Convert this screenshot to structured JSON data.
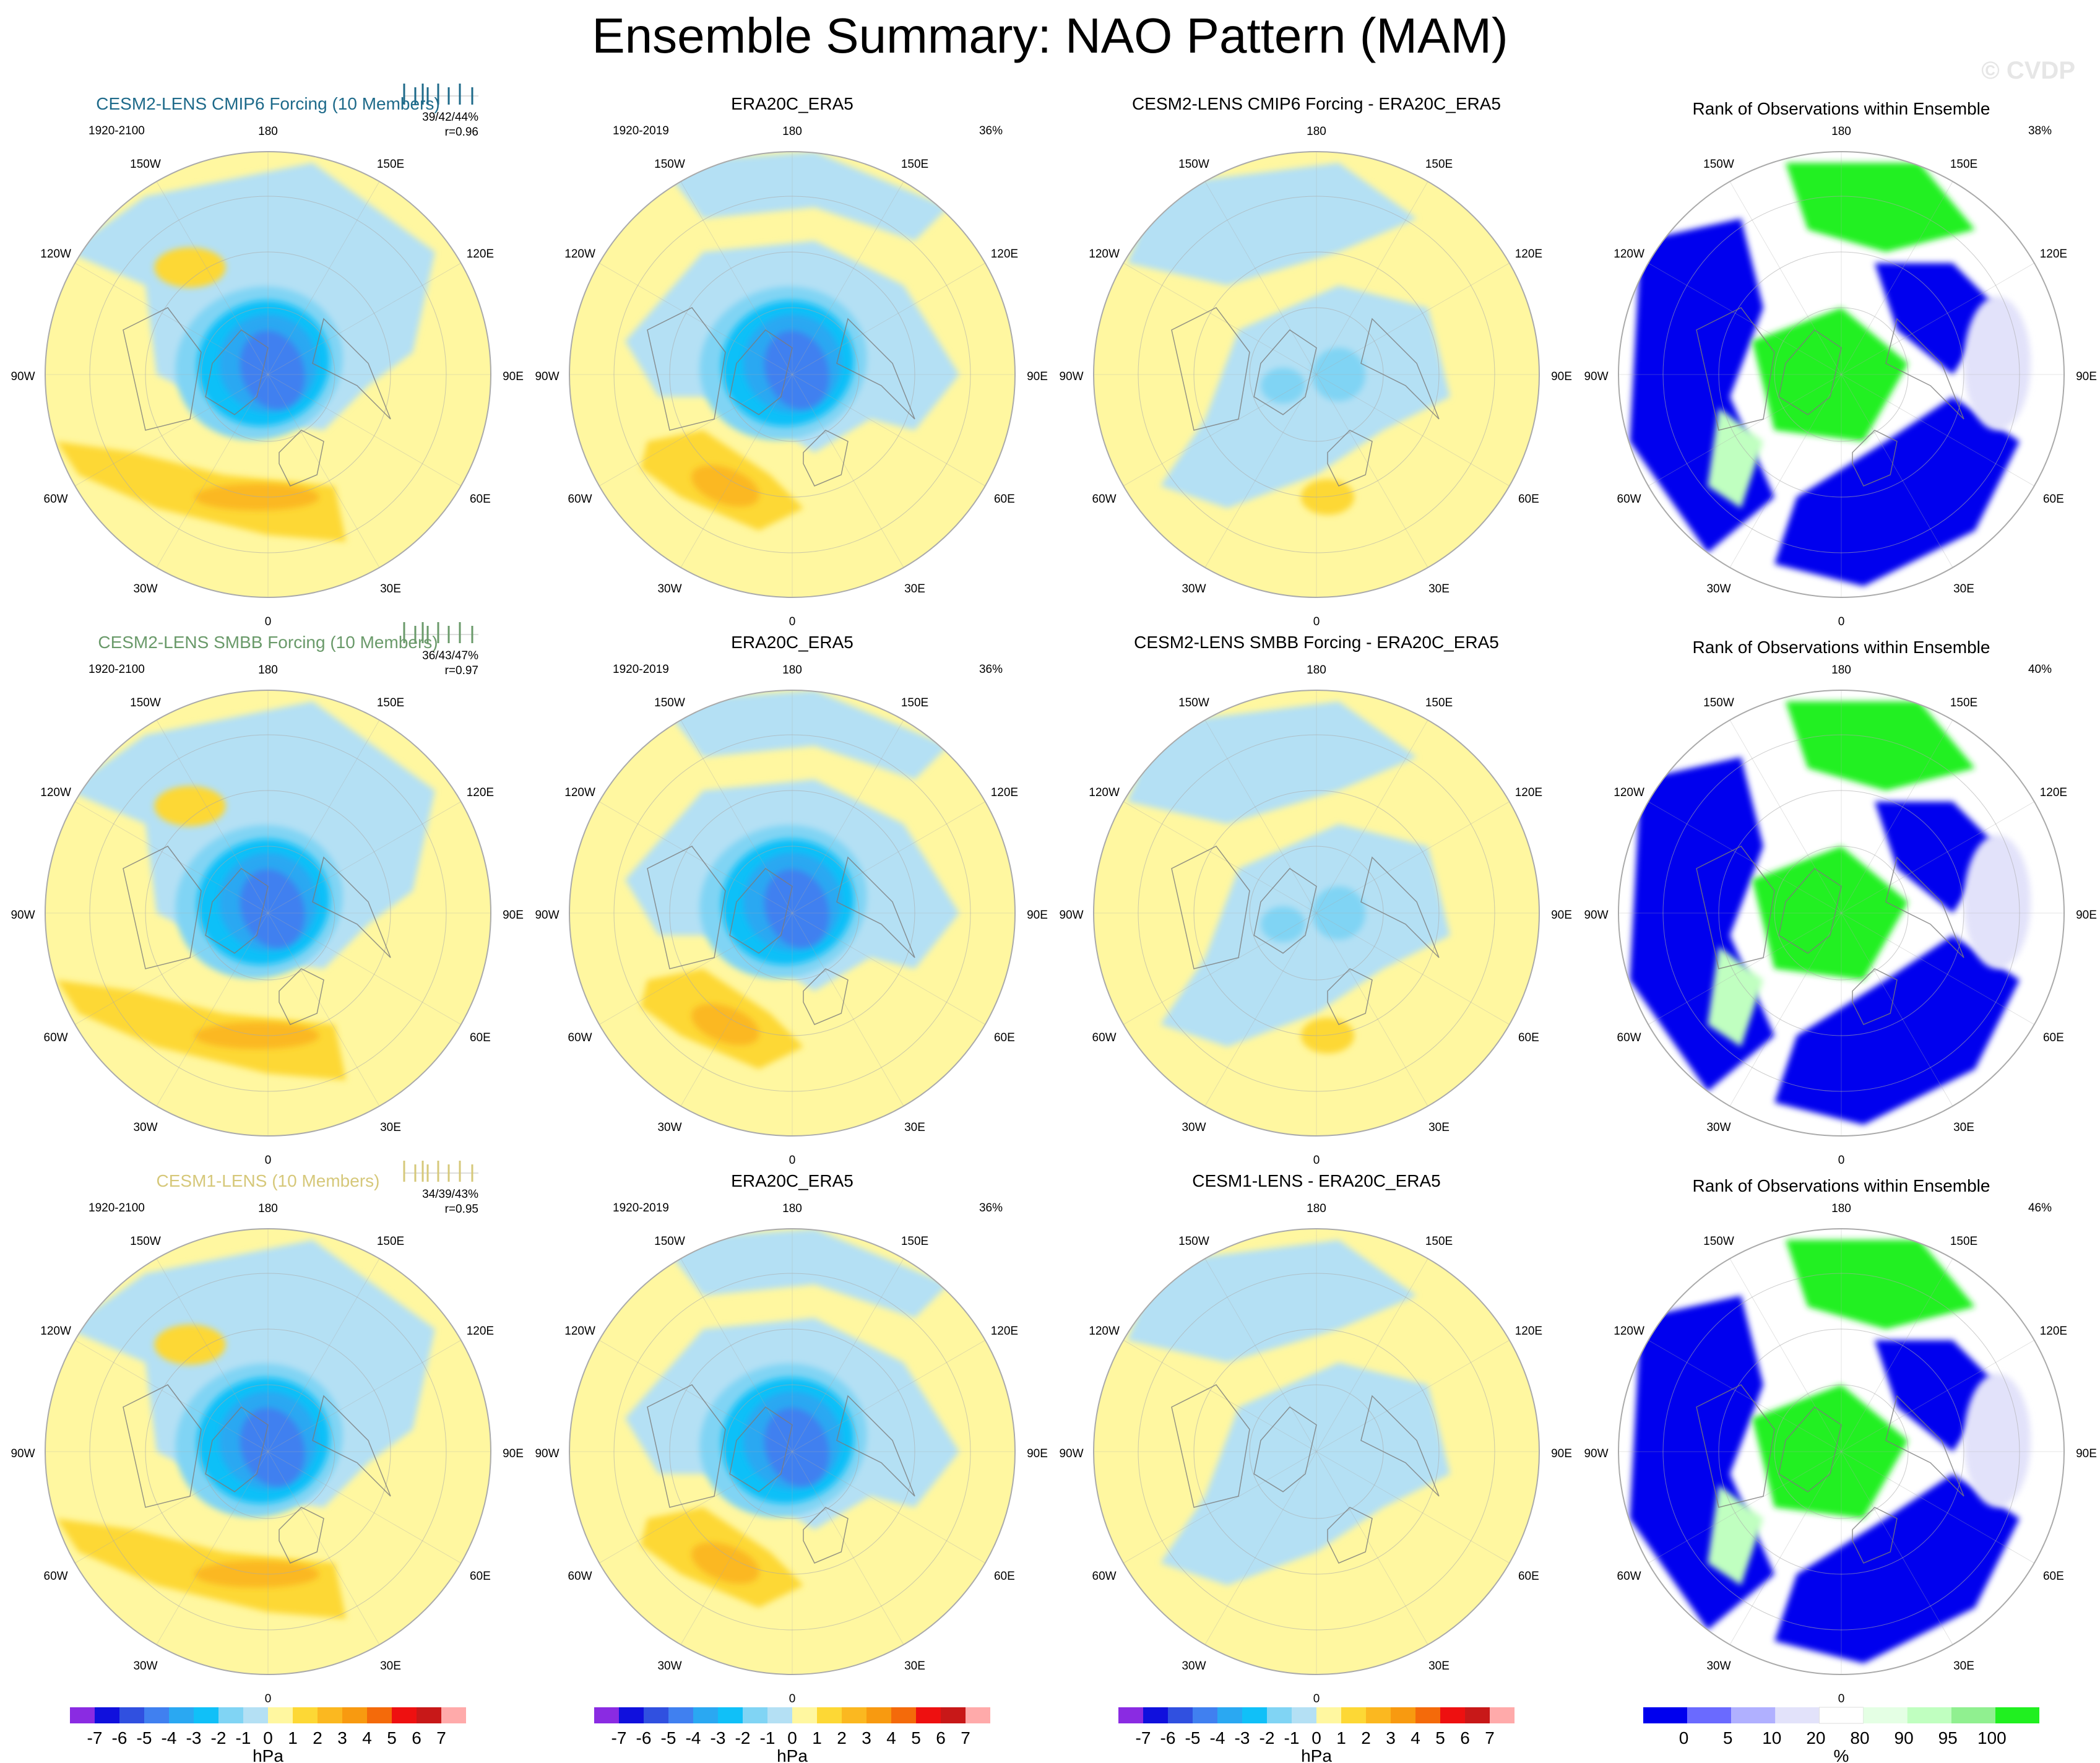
{
  "title": "Ensemble Summary: NAO Pattern (MAM)",
  "watermark": "© CVDP",
  "lon_labels": [
    "180",
    "150E",
    "120E",
    "90E",
    "60E",
    "30E",
    "0",
    "30W",
    "60W",
    "90W",
    "120W",
    "150W"
  ],
  "colors": {
    "pressure_scale": [
      "#8a2be2",
      "#1010dd",
      "#3050e0",
      "#4080f0",
      "#2aa8f2",
      "#10c0f8",
      "#80d4f4",
      "#b4e0f4",
      "#fff7a0",
      "#fdd835",
      "#fbb820",
      "#f89a10",
      "#f46a0a",
      "#ee1010",
      "#c81818",
      "#ffaaaa"
    ],
    "rank_scale": [
      "#0000ee",
      "#6a6aff",
      "#b0b0ff",
      "#e2e2fa",
      "#ffffff",
      "#e4ffe4",
      "#c0ffc0",
      "#90f090",
      "#20f020"
    ],
    "ocean_grey": "#aaaaaa"
  },
  "rows": [
    {
      "model_title": "CESM2-LENS CMIP6 Forcing (10 Members)",
      "title_color": "#1e6a8a",
      "model_years": "1920-2100",
      "pct_triplet": "39/42/44%",
      "corr": "r=0.96",
      "obs_title": "ERA20C_ERA5",
      "obs_years": "1920-2019",
      "obs_pct": "36%",
      "diff_title": "CESM2-LENS CMIP6 Forcing - ERA20C_ERA5",
      "rank_title": "Rank of Observations within Ensemble",
      "rank_pct": "38%"
    },
    {
      "model_title": "CESM2-LENS SMBB Forcing (10 Members)",
      "title_color": "#6a9a6a",
      "model_years": "1920-2100",
      "pct_triplet": "36/43/47%",
      "corr": "r=0.97",
      "obs_title": "ERA20C_ERA5",
      "obs_years": "1920-2019",
      "obs_pct": "36%",
      "diff_title": "CESM2-LENS SMBB Forcing - ERA20C_ERA5",
      "rank_title": "Rank of Observations within Ensemble",
      "rank_pct": "40%"
    },
    {
      "model_title": "CESM1-LENS (10 Members)",
      "title_color": "#d6c87a",
      "model_years": "1920-2100",
      "pct_triplet": "34/39/43%",
      "corr": "r=0.95",
      "obs_title": "ERA20C_ERA5",
      "obs_years": "1920-2019",
      "obs_pct": "36%",
      "diff_title": "CESM1-LENS - ERA20C_ERA5",
      "rank_title": "Rank of Observations within Ensemble",
      "rank_pct": "46%"
    }
  ],
  "colorbars": {
    "pressure_ticks": [
      "-7",
      "-6",
      "-5",
      "-4",
      "-3",
      "-2",
      "-1",
      "0",
      "1",
      "2",
      "3",
      "4",
      "5",
      "6",
      "7"
    ],
    "pressure_unit": "hPa",
    "rank_ticks": [
      "0",
      "5",
      "10",
      "20",
      "80",
      "90",
      "95",
      "100"
    ],
    "rank_unit": "%"
  },
  "chart_data": {
    "type": "heatmap",
    "title": "Ensemble Summary: NAO Pattern (MAM)",
    "projection": "north polar stereographic",
    "panels_per_row": [
      "ensemble mean pattern",
      "observed pattern",
      "model minus observations",
      "rank of observations within ensemble"
    ],
    "pressure_units": "hPa",
    "pressure_levels": [
      -7,
      -6,
      -5,
      -4,
      -3,
      -2,
      -1,
      0,
      1,
      2,
      3,
      4,
      5,
      6,
      7
    ],
    "rank_levels_percent": [
      0,
      5,
      10,
      20,
      80,
      90,
      95,
      100
    ],
    "rows": [
      {
        "model": "CESM2-LENS CMIP6 Forcing (10 Members)",
        "variance_explained_percent": [
          39,
          42,
          44
        ],
        "pattern_correlation": 0.96,
        "obs_variance_explained_percent": 36,
        "rank_percent": 38
      },
      {
        "model": "CESM2-LENS SMBB Forcing (10 Members)",
        "variance_explained_percent": [
          36,
          43,
          47
        ],
        "pattern_correlation": 0.97,
        "obs_variance_explained_percent": 36,
        "rank_percent": 40
      },
      {
        "model": "CESM1-LENS (10 Members)",
        "variance_explained_percent": [
          34,
          39,
          43
        ],
        "pattern_correlation": 0.95,
        "obs_variance_explained_percent": 36,
        "rank_percent": 46
      }
    ]
  }
}
